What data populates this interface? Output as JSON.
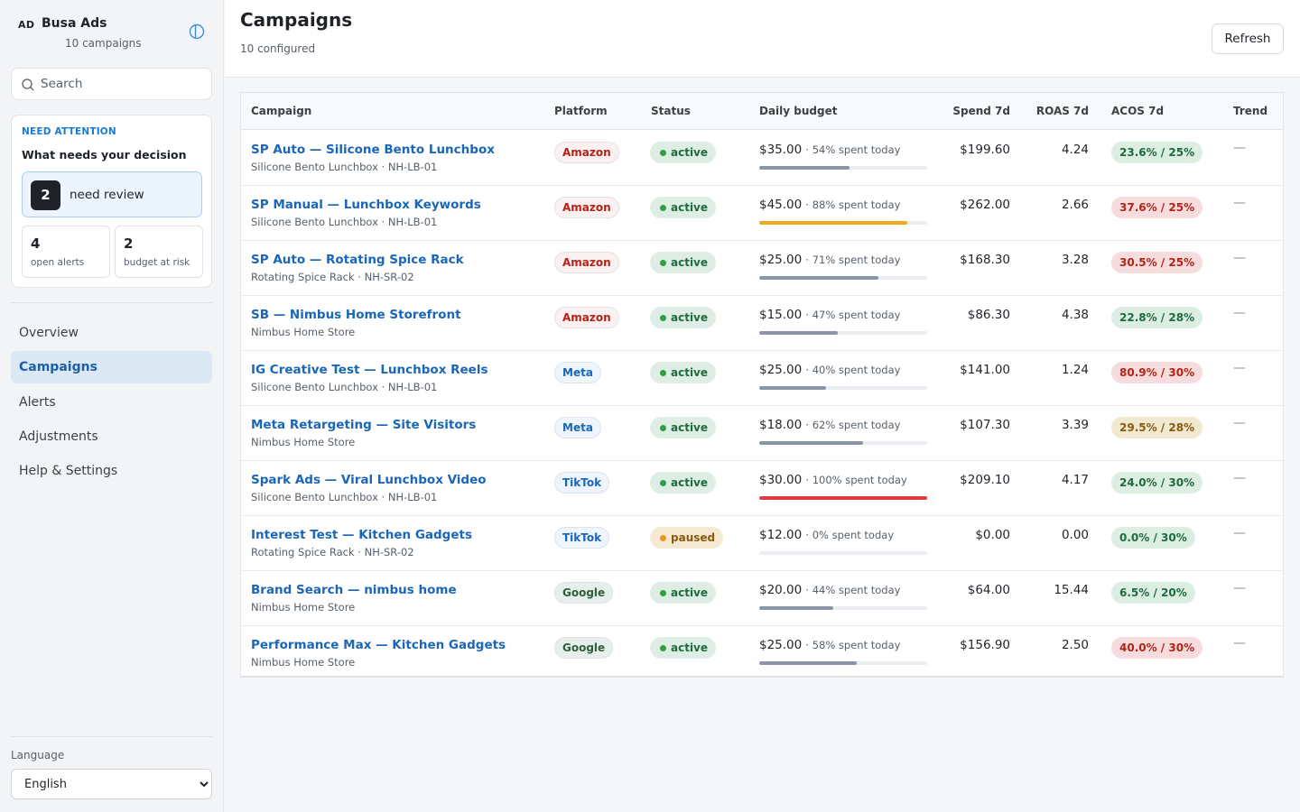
{
  "sidebar": {
    "brand_badge": "AD",
    "brand_name": "Busa Ads",
    "brand_sub": "10 campaigns",
    "search_placeholder": "Search",
    "attention": {
      "kicker": "NEED ATTENTION",
      "title": "What needs your decision",
      "review_count": "2",
      "review_label": "need review",
      "open_alerts_count": "4",
      "open_alerts_label": "open alerts",
      "budget_risk_count": "2",
      "budget_risk_label": "budget at risk"
    },
    "nav": [
      {
        "label": "Overview",
        "active": false
      },
      {
        "label": "Campaigns",
        "active": true
      },
      {
        "label": "Alerts",
        "active": false
      },
      {
        "label": "Adjustments",
        "active": false
      },
      {
        "label": "Help & Settings",
        "active": false
      }
    ],
    "language_label": "Language",
    "language_value": "English"
  },
  "header": {
    "title": "Campaigns",
    "subtitle": "10 configured",
    "refresh_label": "Refresh"
  },
  "table": {
    "columns": [
      "Campaign",
      "Platform",
      "Status",
      "Daily budget",
      "Spend 7d",
      "ROAS 7d",
      "ACOS 7d",
      "Trend"
    ],
    "rows": [
      {
        "name": "SP Auto — Silicone Bento Lunchbox",
        "sub": "Silicone Bento Lunchbox · NH-LB-01",
        "platform": "Amazon",
        "status": "active",
        "budget": "$35.00",
        "spent_pct": 54,
        "spent_text": "· 54% spent today",
        "spend": "$199.60",
        "roas": "4.24",
        "acos": "23.6% / 25%",
        "acos_state": "good",
        "trend": "—"
      },
      {
        "name": "SP Manual — Lunchbox Keywords",
        "sub": "Silicone Bento Lunchbox · NH-LB-01",
        "platform": "Amazon",
        "status": "active",
        "budget": "$45.00",
        "spent_pct": 88,
        "spent_text": "· 88% spent today",
        "spend": "$262.00",
        "roas": "2.66",
        "acos": "37.6% / 25%",
        "acos_state": "bad",
        "trend": "—"
      },
      {
        "name": "SP Auto — Rotating Spice Rack",
        "sub": "Rotating Spice Rack · NH-SR-02",
        "platform": "Amazon",
        "status": "active",
        "budget": "$25.00",
        "spent_pct": 71,
        "spent_text": "· 71% spent today",
        "spend": "$168.30",
        "roas": "3.28",
        "acos": "30.5% / 25%",
        "acos_state": "bad",
        "trend": "—"
      },
      {
        "name": "SB — Nimbus Home Storefront",
        "sub": "Nimbus Home Store",
        "platform": "Amazon",
        "status": "active",
        "budget": "$15.00",
        "spent_pct": 47,
        "spent_text": "· 47% spent today",
        "spend": "$86.30",
        "roas": "4.38",
        "acos": "22.8% / 28%",
        "acos_state": "good",
        "trend": "—"
      },
      {
        "name": "IG Creative Test — Lunchbox Reels",
        "sub": "Silicone Bento Lunchbox · NH-LB-01",
        "platform": "Meta",
        "status": "active",
        "budget": "$25.00",
        "spent_pct": 40,
        "spent_text": "· 40% spent today",
        "spend": "$141.00",
        "roas": "1.24",
        "acos": "80.9% / 30%",
        "acos_state": "bad",
        "trend": "—"
      },
      {
        "name": "Meta Retargeting — Site Visitors",
        "sub": "Nimbus Home Store",
        "platform": "Meta",
        "status": "active",
        "budget": "$18.00",
        "spent_pct": 62,
        "spent_text": "· 62% spent today",
        "spend": "$107.30",
        "roas": "3.39",
        "acos": "29.5% / 28%",
        "acos_state": "warn",
        "trend": "—"
      },
      {
        "name": "Spark Ads — Viral Lunchbox Video",
        "sub": "Silicone Bento Lunchbox · NH-LB-01",
        "platform": "TikTok",
        "status": "active",
        "budget": "$30.00",
        "spent_pct": 100,
        "spent_text": "· 100% spent today",
        "spend": "$209.10",
        "roas": "4.17",
        "acos": "24.0% / 30%",
        "acos_state": "good",
        "trend": "—"
      },
      {
        "name": "Interest Test — Kitchen Gadgets",
        "sub": "Rotating Spice Rack · NH-SR-02",
        "platform": "TikTok",
        "status": "paused",
        "budget": "$12.00",
        "spent_pct": 0,
        "spent_text": "· 0% spent today",
        "spend": "$0.00",
        "roas": "0.00",
        "acos": "0.0% / 30%",
        "acos_state": "good",
        "trend": "—"
      },
      {
        "name": "Brand Search — nimbus home",
        "sub": "Nimbus Home Store",
        "platform": "Google",
        "status": "active",
        "budget": "$20.00",
        "spent_pct": 44,
        "spent_text": "· 44% spent today",
        "spend": "$64.00",
        "roas": "15.44",
        "acos": "6.5% / 20%",
        "acos_state": "good",
        "trend": "—"
      },
      {
        "name": "Performance Max — Kitchen Gadgets",
        "sub": "Nimbus Home Store",
        "platform": "Google",
        "status": "active",
        "budget": "$25.00",
        "spent_pct": 58,
        "spent_text": "· 58% spent today",
        "spend": "$156.90",
        "roas": "2.50",
        "acos": "40.0% / 30%",
        "acos_state": "bad",
        "trend": "—"
      }
    ]
  },
  "colors": {
    "accent": "#1a66b8",
    "bar_normal": "#8a96a8",
    "bar_warning": "#f0a81c",
    "bar_full": "#e0393e"
  }
}
